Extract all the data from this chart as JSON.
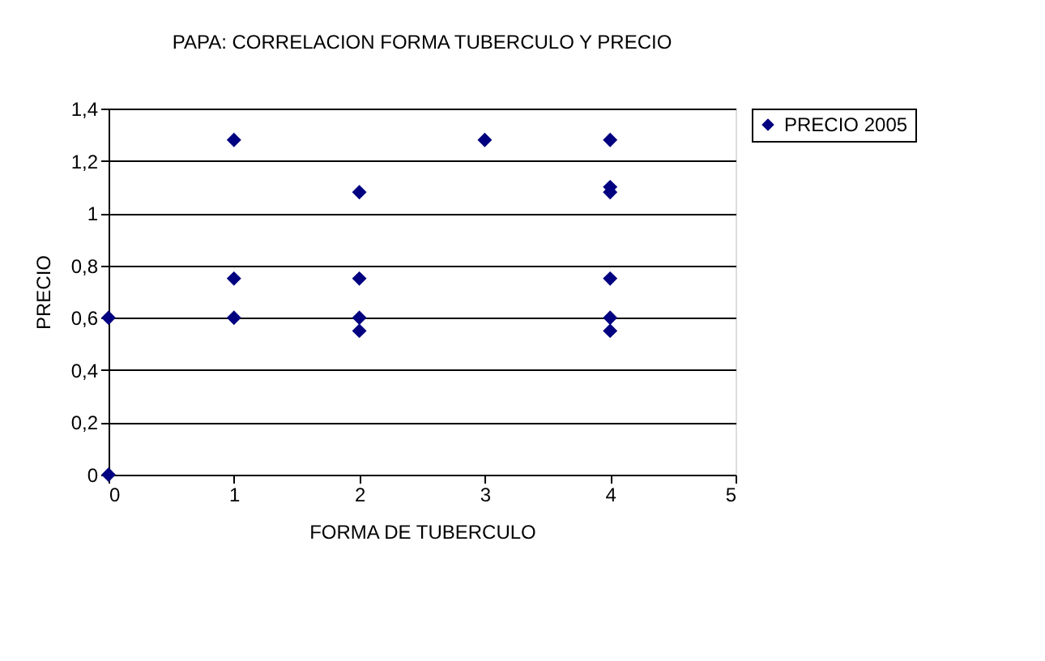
{
  "chart_data": {
    "type": "scatter",
    "title": "PAPA: CORRELACION FORMA TUBERCULO Y PRECIO",
    "xlabel": "FORMA DE TUBERCULO",
    "ylabel": "PRECIO",
    "x": [
      0,
      0,
      1,
      1,
      1,
      2,
      2,
      2,
      2,
      3,
      4,
      4,
      4,
      4,
      4,
      4
    ],
    "series": [
      {
        "name": "PRECIO 2005",
        "color": "#000080",
        "values": [
          0,
          0.6,
          1.28,
          0.75,
          0.6,
          1.08,
          0.75,
          0.6,
          0.55,
          1.28,
          1.28,
          1.1,
          1.08,
          0.75,
          0.6,
          0.55
        ]
      }
    ],
    "xlim": [
      0,
      5
    ],
    "xticks": [
      0,
      1,
      2,
      3,
      4,
      5
    ],
    "ylim": [
      0,
      1.4
    ],
    "yticks": [
      0,
      {
        "value": 0.2,
        "label": "0,2"
      },
      {
        "value": 0.4,
        "label": "0,4"
      },
      {
        "value": 0.6,
        "label": "0,6"
      },
      {
        "value": 0.8,
        "label": "0,8"
      },
      1,
      {
        "value": 1.2,
        "label": "1,2"
      },
      {
        "value": 1.4,
        "label": "1,4"
      }
    ],
    "grid": "y",
    "legend": "right",
    "marker": "diamond"
  }
}
